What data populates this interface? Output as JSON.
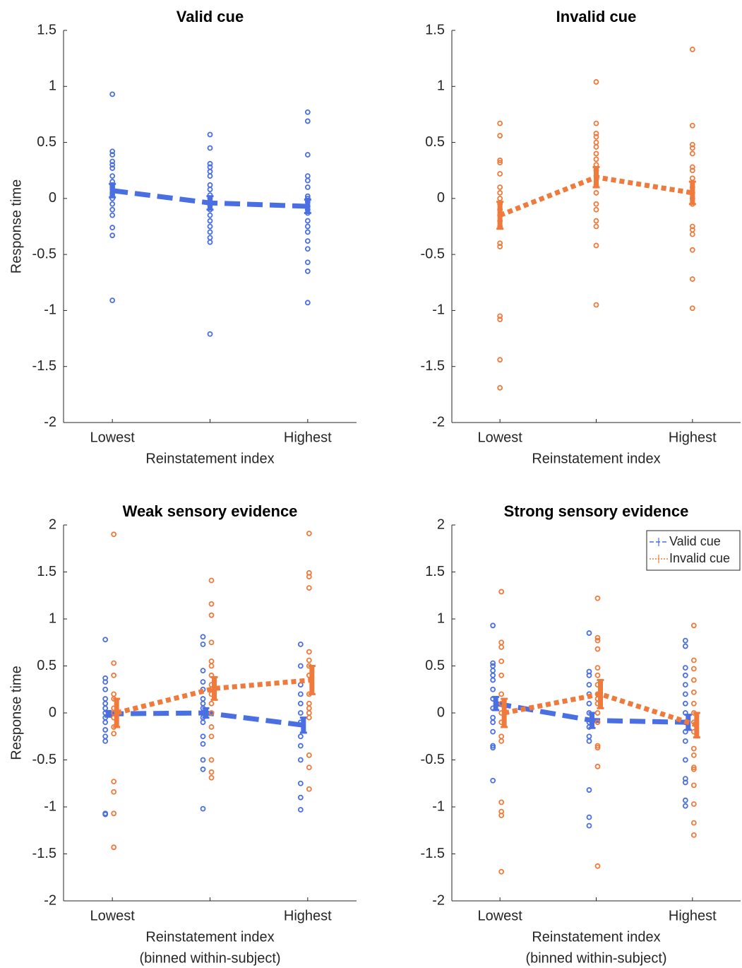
{
  "chart_data": [
    {
      "type": "errorbar-scatter",
      "title": "Valid cue",
      "ylabel": "Response time",
      "xlabel": "Reinstatement index",
      "categories": [
        "Lowest",
        null,
        "Highest"
      ],
      "xlim": [
        0.5,
        3.5
      ],
      "ylim": [
        -2,
        1.5
      ],
      "yticks": [
        -2,
        -1.5,
        -1,
        -0.5,
        0,
        0.5,
        1,
        1.5
      ],
      "series": [
        {
          "color": "#4a6fe3",
          "line_style": "dashed",
          "values": [
            0.07,
            -0.04,
            -0.07
          ],
          "errors": [
            0.06,
            0.06,
            0.06
          ],
          "points": [
            [
              0.93,
              0.42,
              0.39,
              0.33,
              0.3,
              0.27,
              0.2,
              0.15,
              0.12,
              0.1,
              0.08,
              0.05,
              0.03,
              0.0,
              -0.05,
              -0.1,
              -0.15,
              -0.26,
              -0.33,
              -0.91
            ],
            [
              0.57,
              0.45,
              0.31,
              0.28,
              0.24,
              0.2,
              0.12,
              0.08,
              0.03,
              0.0,
              -0.03,
              -0.06,
              -0.1,
              -0.15,
              -0.2,
              -0.25,
              -0.3,
              -0.35,
              -0.39,
              -1.21
            ],
            [
              0.77,
              0.69,
              0.39,
              0.2,
              0.16,
              0.1,
              0.02,
              0.0,
              -0.03,
              -0.07,
              -0.1,
              -0.13,
              -0.2,
              -0.25,
              -0.3,
              -0.38,
              -0.45,
              -0.57,
              -0.65,
              -0.93
            ]
          ]
        }
      ]
    },
    {
      "type": "errorbar-scatter",
      "title": "Invalid cue",
      "xlabel": "Reinstatement index",
      "categories": [
        "Lowest",
        null,
        "Highest"
      ],
      "xlim": [
        0.5,
        3.5
      ],
      "ylim": [
        -2,
        1.5
      ],
      "yticks": [
        -2,
        -1.5,
        -1,
        -0.5,
        0,
        0.5,
        1,
        1.5
      ],
      "series": [
        {
          "color": "#f07a3c",
          "line_style": "dotted",
          "values": [
            -0.15,
            0.19,
            0.05
          ],
          "errors": [
            0.12,
            0.09,
            0.1
          ],
          "points": [
            [
              0.67,
              0.56,
              0.34,
              0.32,
              0.22,
              0.1,
              0.05,
              0.0,
              -0.05,
              -0.1,
              -0.15,
              -0.2,
              -0.25,
              -0.4,
              -0.43,
              -1.05,
              -1.08,
              -1.44,
              -1.69
            ],
            [
              1.04,
              0.67,
              0.58,
              0.55,
              0.5,
              0.46,
              0.4,
              0.35,
              0.3,
              0.25,
              0.2,
              0.12,
              0.05,
              -0.05,
              -0.1,
              -0.2,
              -0.25,
              -0.42,
              -0.95
            ],
            [
              1.33,
              0.65,
              0.48,
              0.45,
              0.4,
              0.28,
              0.25,
              0.18,
              0.1,
              0.05,
              0.0,
              -0.05,
              -0.25,
              -0.28,
              -0.32,
              -0.46,
              -0.72,
              -0.98
            ]
          ]
        }
      ]
    },
    {
      "type": "errorbar-scatter",
      "title": "Weak sensory evidence",
      "ylabel": "Response time",
      "xlabel": [
        "Reinstatement index",
        "(binned within-subject)"
      ],
      "categories": [
        "Lowest",
        null,
        "Highest"
      ],
      "xlim": [
        0.5,
        3.5
      ],
      "ylim": [
        -2,
        2
      ],
      "yticks": [
        -2,
        -1.5,
        -1,
        -0.5,
        0,
        0.5,
        1,
        1.5,
        2
      ],
      "series": [
        {
          "color": "#4a6fe3",
          "line_style": "dashed",
          "values": [
            -0.01,
            0.0,
            -0.13
          ],
          "errors": [
            0.03,
            0.05,
            0.08
          ],
          "points": [
            [
              0.78,
              0.37,
              0.33,
              0.25,
              0.15,
              0.1,
              0.05,
              0.0,
              -0.05,
              -0.1,
              -0.18,
              -0.25,
              -0.3,
              -1.07,
              -1.08
            ],
            [
              0.81,
              0.73,
              0.45,
              0.33,
              0.25,
              0.15,
              0.1,
              0.05,
              -0.05,
              -0.1,
              -0.25,
              -0.33,
              -0.5,
              -0.6,
              -1.02
            ],
            [
              0.73,
              0.5,
              0.3,
              0.2,
              0.1,
              0.0,
              -0.1,
              -0.25,
              -0.35,
              -0.5,
              -0.75,
              -0.9,
              -1.03
            ]
          ]
        },
        {
          "color": "#f07a3c",
          "line_style": "dotted",
          "values": [
            0.0,
            0.26,
            0.35
          ],
          "errors": [
            0.15,
            0.12,
            0.15
          ],
          "points": [
            [
              1.9,
              0.53,
              0.4,
              0.2,
              0.15,
              0.05,
              0.0,
              -0.05,
              -0.15,
              -0.22,
              -0.73,
              -0.84,
              -1.07,
              -1.43
            ],
            [
              1.41,
              1.16,
              1.04,
              0.75,
              0.55,
              0.5,
              0.4,
              0.3,
              0.2,
              0.1,
              0.0,
              -0.15,
              -0.25,
              -0.5,
              -0.63,
              -0.69
            ],
            [
              1.91,
              1.49,
              1.45,
              1.33,
              0.65,
              0.56,
              0.5,
              0.4,
              0.2,
              0.1,
              0.05,
              0.0,
              -0.05,
              -0.45,
              -0.58,
              -0.81
            ]
          ]
        }
      ]
    },
    {
      "type": "errorbar-scatter",
      "title": "Strong sensory evidence",
      "xlabel": [
        "Reinstatement index",
        "(binned within-subject)"
      ],
      "categories": [
        "Lowest",
        null,
        "Highest"
      ],
      "xlim": [
        0.5,
        3.5
      ],
      "ylim": [
        -2,
        2
      ],
      "yticks": [
        -2,
        -1.5,
        -1,
        -0.5,
        0,
        0.5,
        1,
        1.5,
        2
      ],
      "legend": "northeast",
      "series": [
        {
          "name": "Valid cue",
          "color": "#4a6fe3",
          "line_style": "dashed",
          "values": [
            0.1,
            -0.08,
            -0.1
          ],
          "errors": [
            0.07,
            0.08,
            0.08
          ],
          "points": [
            [
              0.93,
              0.53,
              0.5,
              0.45,
              0.4,
              0.35,
              0.25,
              0.15,
              0.05,
              -0.05,
              -0.1,
              -0.2,
              -0.35,
              -0.37,
              -0.72
            ],
            [
              0.85,
              0.44,
              0.4,
              0.3,
              0.2,
              0.1,
              0.0,
              -0.1,
              -0.15,
              -0.25,
              -0.3,
              -0.82,
              -1.11,
              -1.2
            ],
            [
              0.77,
              0.71,
              0.48,
              0.4,
              0.3,
              0.2,
              0.1,
              0.0,
              -0.1,
              -0.2,
              -0.3,
              -0.5,
              -0.7,
              -0.74,
              -0.93,
              -0.99
            ]
          ]
        },
        {
          "name": "Invalid cue",
          "color": "#f07a3c",
          "line_style": "dotted",
          "values": [
            0.0,
            0.2,
            -0.13
          ],
          "errors": [
            0.15,
            0.15,
            0.13
          ],
          "points": [
            [
              1.29,
              0.75,
              0.7,
              0.55,
              0.4,
              0.2,
              0.1,
              0.0,
              -0.1,
              -0.25,
              -0.3,
              -0.95,
              -1.05,
              -1.09,
              -1.69
            ],
            [
              1.22,
              0.8,
              0.77,
              0.68,
              0.48,
              0.4,
              0.3,
              0.2,
              0.15,
              0.1,
              0.0,
              -0.1,
              -0.35,
              -0.37,
              -0.57,
              -1.63
            ],
            [
              0.93,
              0.56,
              0.47,
              0.35,
              0.22,
              0.1,
              0.0,
              -0.1,
              -0.2,
              -0.38,
              -0.45,
              -0.58,
              -0.6,
              -0.77,
              -0.97,
              -1.17,
              -1.3
            ]
          ]
        }
      ]
    }
  ]
}
